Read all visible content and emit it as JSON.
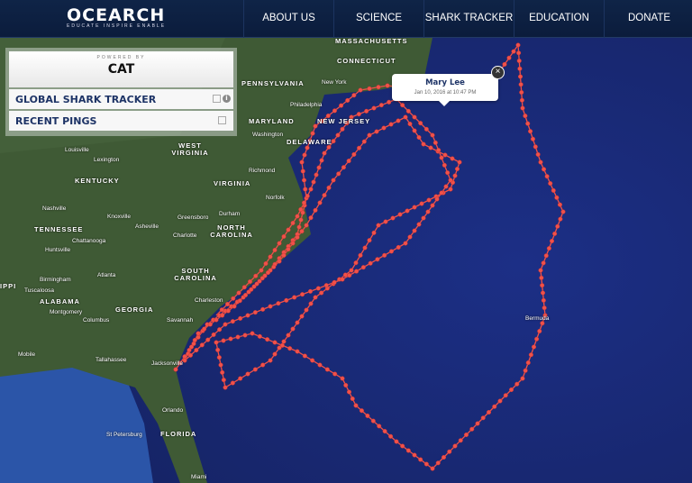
{
  "header": {
    "logo": "OCEARCH",
    "logo_tagline": "EDUCATE   INSPIRE   ENABLE",
    "nav": [
      "ABOUT US",
      "SCIENCE",
      "SHARK TRACKER",
      "EDUCATION",
      "DONATE"
    ]
  },
  "panel": {
    "powered_by": "POWERED BY",
    "sponsor_logo": "CAT",
    "items": [
      "GLOBAL SHARK TRACKER",
      "RECENT PINGS"
    ]
  },
  "popup": {
    "name": "Mary Lee",
    "timestamp": "Jan 10, 2016 at 10:47 PM",
    "close": "×"
  },
  "colors": {
    "header": "#0f2447",
    "ocean": "#1c2f86",
    "land": "#3f5a35",
    "track": "#f0524a"
  },
  "map_labels": [
    {
      "text": "MASSACHUSETTS",
      "state": true
    },
    {
      "text": "CONNECTICUT",
      "state": true
    },
    {
      "text": "PENNSYLVANIA",
      "state": true
    },
    {
      "text": "New York",
      "state": false
    },
    {
      "text": "NEW JERSEY",
      "state": true
    },
    {
      "text": "Philadelphia",
      "state": false
    },
    {
      "text": "MARYLAND",
      "state": true
    },
    {
      "text": "Washington",
      "state": false
    },
    {
      "text": "DELAWARE",
      "state": true
    },
    {
      "text": "WEST VIRGINIA",
      "state": true
    },
    {
      "text": "Richmond",
      "state": false
    },
    {
      "text": "Louisville",
      "state": false
    },
    {
      "text": "Lexington",
      "state": false
    },
    {
      "text": "KENTUCKY",
      "state": true
    },
    {
      "text": "VIRGINIA",
      "state": true
    },
    {
      "text": "Norfolk",
      "state": false
    },
    {
      "text": "Nashville",
      "state": false
    },
    {
      "text": "Knoxville",
      "state": false
    },
    {
      "text": "TENNESSEE",
      "state": true
    },
    {
      "text": "Greensboro",
      "state": false
    },
    {
      "text": "Durham",
      "state": false
    },
    {
      "text": "NORTH CAROLINA",
      "state": true
    },
    {
      "text": "Charlotte",
      "state": false
    },
    {
      "text": "Asheville",
      "state": false
    },
    {
      "text": "Chattanooga",
      "state": false
    },
    {
      "text": "Huntsville",
      "state": false
    },
    {
      "text": "Atlanta",
      "state": false
    },
    {
      "text": "SOUTH CAROLINA",
      "state": true
    },
    {
      "text": "Birmingham",
      "state": false
    },
    {
      "text": "IPPI",
      "state": true
    },
    {
      "text": "Tuscaloosa",
      "state": false
    },
    {
      "text": "ALABAMA",
      "state": true
    },
    {
      "text": "GEORGIA",
      "state": true
    },
    {
      "text": "Montgomery",
      "state": false
    },
    {
      "text": "Columbus",
      "state": false
    },
    {
      "text": "Charleston",
      "state": false
    },
    {
      "text": "Savannah",
      "state": false
    },
    {
      "text": "Tallahassee",
      "state": false
    },
    {
      "text": "Jacksonville",
      "state": false
    },
    {
      "text": "Mobile",
      "state": false
    },
    {
      "text": "Bermuda",
      "state": false
    },
    {
      "text": "Orlando",
      "state": false
    },
    {
      "text": "St Petersburg",
      "state": false
    },
    {
      "text": "FLORIDA",
      "state": true
    },
    {
      "text": "Miami",
      "state": false
    }
  ]
}
